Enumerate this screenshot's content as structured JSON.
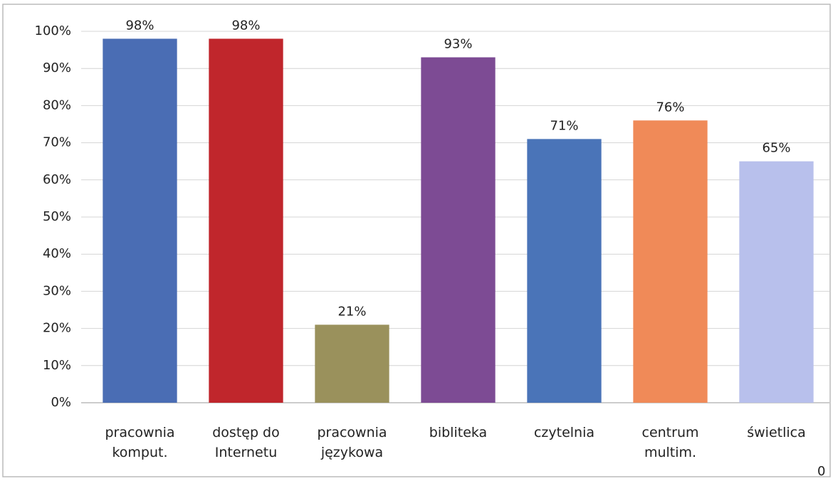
{
  "chart_data": {
    "type": "bar",
    "categories": [
      "pracownia komput.",
      "dostęp do Internetu",
      "pracownia językowa",
      "bibliteka",
      "czytelnia",
      "centrum multim.",
      "świetlica"
    ],
    "values": [
      98,
      98,
      21,
      93,
      71,
      76,
      65
    ],
    "value_labels": [
      "98%",
      "98%",
      "21%",
      "93%",
      "71%",
      "76%",
      "65%"
    ],
    "colors": [
      "#4a6db4",
      "#c0262c",
      "#9a915c",
      "#7d4b94",
      "#4a74b8",
      "#f08a58",
      "#b8c0ec"
    ],
    "ylim": [
      0,
      100
    ],
    "yticks": [
      {
        "value": 0,
        "label": "0%"
      },
      {
        "value": 10,
        "label": "10%"
      },
      {
        "value": 20,
        "label": "20%"
      },
      {
        "value": 30,
        "label": "30%"
      },
      {
        "value": 40,
        "label": "40%"
      },
      {
        "value": 50,
        "label": "50%"
      },
      {
        "value": 60,
        "label": "60%"
      },
      {
        "value": 70,
        "label": "70%"
      },
      {
        "value": 80,
        "label": "80%"
      },
      {
        "value": 90,
        "label": "90%"
      },
      {
        "value": 100,
        "label": "100%"
      }
    ],
    "grid": true,
    "annotation": "0"
  }
}
